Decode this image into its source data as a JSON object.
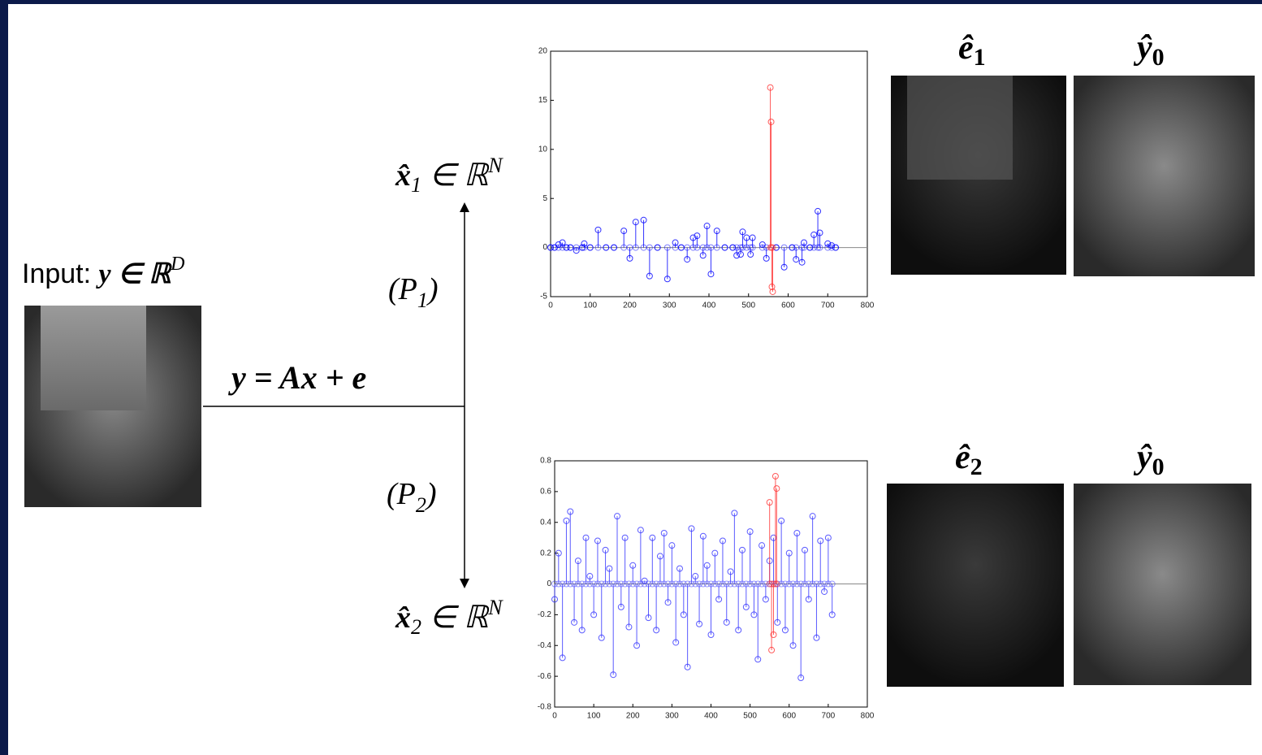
{
  "labels": {
    "input": {
      "text": "Input: ",
      "math": "y ∈ ℝ",
      "sup": "D"
    },
    "equation": "y = Ax + e",
    "p1": {
      "open": "(P",
      "sub": "1",
      "close": ")"
    },
    "p2": {
      "open": "(P",
      "sub": "2",
      "close": ")"
    },
    "x1": {
      "math": "x̂",
      "sub": "1",
      "rest": " ∈ ℝ",
      "sup": "N"
    },
    "x2": {
      "math": "x̂",
      "sub": "2",
      "rest": " ∈ ℝ",
      "sup": "N"
    },
    "e1": {
      "math": "ê",
      "sub": "1"
    },
    "y0_top": {
      "math": "ŷ",
      "sub": "0"
    },
    "e2": {
      "math": "ê",
      "sub": "2"
    },
    "y0_bottom": {
      "math": "ŷ",
      "sub": "0"
    }
  },
  "chart_data": [
    {
      "type": "stem",
      "xlim": [
        0,
        800
      ],
      "xticks": [
        0,
        100,
        200,
        300,
        400,
        500,
        600,
        700,
        800
      ],
      "ylim": [
        -5,
        20
      ],
      "yticks": [
        -5,
        0,
        5,
        10,
        15,
        20
      ],
      "series": [
        {
          "color": "#0000ff",
          "x": [
            0,
            10,
            20,
            30,
            40,
            50,
            65,
            80,
            85,
            100,
            120,
            140,
            160,
            185,
            200,
            215,
            235,
            250,
            270,
            295,
            315,
            330,
            345,
            360,
            370,
            385,
            395,
            405,
            420,
            440,
            460,
            470,
            480,
            485,
            495,
            505,
            510,
            535,
            545,
            570,
            590,
            610,
            620,
            635,
            640,
            655,
            665,
            675,
            680,
            700,
            710,
            720
          ],
          "values": [
            0,
            0,
            0.3,
            0.5,
            0,
            0,
            -0.3,
            0,
            0.4,
            0,
            1.8,
            0,
            0,
            1.7,
            -1.1,
            2.6,
            2.8,
            -2.9,
            0,
            -3.2,
            0.5,
            0,
            -1.2,
            1.0,
            1.2,
            -0.8,
            2.2,
            -2.7,
            1.7,
            0,
            0,
            -0.8,
            -0.7,
            1.6,
            1.0,
            -0.7,
            1.0,
            0.3,
            -1.1,
            0,
            -2.0,
            0,
            -1.2,
            -1.5,
            0.5,
            0,
            1.3,
            3.7,
            1.5,
            0.4,
            0.2,
            0
          ]
        },
        {
          "color": "#ff3333",
          "x": [
            555,
            557,
            559,
            561
          ],
          "values": [
            16.3,
            12.8,
            -4.0,
            -4.5
          ]
        }
      ]
    },
    {
      "type": "stem",
      "xlim": [
        0,
        800
      ],
      "xticks": [
        0,
        100,
        200,
        300,
        400,
        500,
        600,
        700,
        800
      ],
      "ylim": [
        -0.8,
        0.8
      ],
      "yticks": [
        -0.8,
        -0.6,
        -0.4,
        -0.2,
        0,
        0.2,
        0.4,
        0.6,
        0.8
      ],
      "series": [
        {
          "color": "#3333ff",
          "x": [
            0,
            10,
            20,
            30,
            40,
            50,
            60,
            70,
            80,
            90,
            100,
            110,
            120,
            130,
            140,
            150,
            160,
            170,
            180,
            190,
            200,
            210,
            220,
            230,
            240,
            250,
            260,
            270,
            280,
            290,
            300,
            310,
            320,
            330,
            340,
            350,
            360,
            370,
            380,
            390,
            400,
            410,
            420,
            430,
            440,
            450,
            460,
            470,
            480,
            490,
            500,
            510,
            520,
            530,
            540,
            550,
            560,
            570,
            580,
            590,
            600,
            610,
            620,
            630,
            640,
            650,
            660,
            670,
            680,
            690,
            700,
            710
          ],
          "values": [
            -0.1,
            0.2,
            -0.48,
            0.41,
            0.47,
            -0.25,
            0.15,
            -0.3,
            0.3,
            0.05,
            -0.2,
            0.28,
            -0.35,
            0.22,
            0.1,
            -0.59,
            0.44,
            -0.15,
            0.3,
            -0.28,
            0.12,
            -0.4,
            0.35,
            0.02,
            -0.22,
            0.3,
            -0.3,
            0.18,
            0.33,
            -0.12,
            0.25,
            -0.38,
            0.1,
            -0.2,
            -0.54,
            0.36,
            0.05,
            -0.26,
            0.31,
            0.12,
            -0.33,
            0.2,
            -0.1,
            0.28,
            -0.25,
            0.08,
            0.46,
            -0.3,
            0.22,
            -0.15,
            0.34,
            -0.2,
            -0.49,
            0.25,
            -0.1,
            0.15,
            0.3,
            -0.25,
            0.41,
            -0.3,
            0.2,
            -0.4,
            0.33,
            -0.61,
            0.22,
            -0.1,
            0.44,
            -0.35,
            0.28,
            -0.05,
            0.3,
            -0.2
          ]
        },
        {
          "color": "#ff3333",
          "x": [
            550,
            555,
            560,
            565,
            568
          ],
          "values": [
            0.53,
            -0.43,
            -0.33,
            0.7,
            0.62
          ]
        }
      ]
    }
  ]
}
